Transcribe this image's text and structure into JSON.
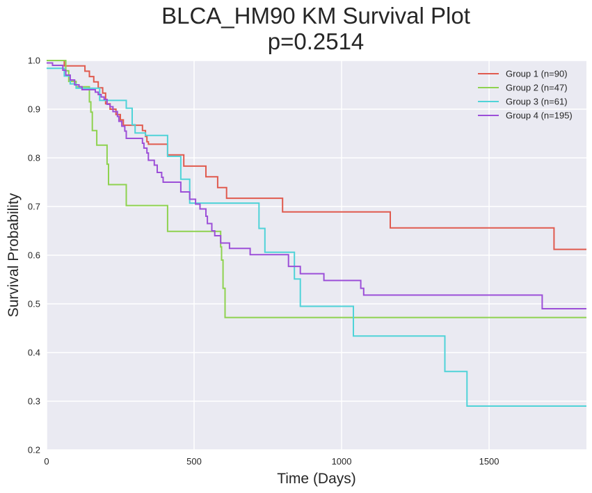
{
  "colors": {
    "plot_bg": "#eaeaf2",
    "grid": "#ffffff",
    "text": "#262626"
  },
  "chart_data": {
    "type": "line",
    "subtype": "kaplan-meier-step",
    "title_line1": "BLCA_HM90 KM Survival Plot",
    "title_line2": "p=0.2514",
    "xlabel": "Time (Days)",
    "ylabel": "Survival Probability",
    "xlim": [
      0,
      1830
    ],
    "ylim": [
      0.2,
      1.0
    ],
    "xticks": [
      0,
      500,
      1000,
      1500
    ],
    "yticks": [
      0.2,
      0.3,
      0.4,
      0.5,
      0.6,
      0.7,
      0.8,
      0.9,
      1.0
    ],
    "grid": true,
    "legend_position": "top-right",
    "series": [
      {
        "name": "Group 1 (n=90)",
        "color": "#e05a4e",
        "points": [
          [
            0,
            1.0
          ],
          [
            60,
            0.989
          ],
          [
            130,
            0.978
          ],
          [
            145,
            0.967
          ],
          [
            160,
            0.956
          ],
          [
            175,
            0.944
          ],
          [
            190,
            0.933
          ],
          [
            200,
            0.911
          ],
          [
            215,
            0.9
          ],
          [
            235,
            0.889
          ],
          [
            250,
            0.878
          ],
          [
            260,
            0.867
          ],
          [
            325,
            0.856
          ],
          [
            335,
            0.844
          ],
          [
            340,
            0.833
          ],
          [
            345,
            0.828
          ],
          [
            410,
            0.806
          ],
          [
            465,
            0.783
          ],
          [
            540,
            0.761
          ],
          [
            580,
            0.739
          ],
          [
            610,
            0.717
          ],
          [
            800,
            0.689
          ],
          [
            1165,
            0.656
          ],
          [
            1720,
            0.612
          ],
          [
            1830,
            0.612
          ]
        ]
      },
      {
        "name": "Group 2 (n=47)",
        "color": "#8ed24f",
        "points": [
          [
            0,
            1.0
          ],
          [
            65,
            0.979
          ],
          [
            75,
            0.957
          ],
          [
            100,
            0.946
          ],
          [
            145,
            0.915
          ],
          [
            150,
            0.894
          ],
          [
            155,
            0.856
          ],
          [
            170,
            0.826
          ],
          [
            205,
            0.787
          ],
          [
            210,
            0.745
          ],
          [
            270,
            0.702
          ],
          [
            410,
            0.649
          ],
          [
            590,
            0.617
          ],
          [
            593,
            0.59
          ],
          [
            598,
            0.532
          ],
          [
            605,
            0.472
          ],
          [
            1830,
            0.472
          ]
        ]
      },
      {
        "name": "Group 3 (n=61)",
        "color": "#4fd3d8",
        "points": [
          [
            0,
            0.984
          ],
          [
            60,
            0.968
          ],
          [
            80,
            0.952
          ],
          [
            100,
            0.943
          ],
          [
            180,
            0.918
          ],
          [
            270,
            0.902
          ],
          [
            290,
            0.868
          ],
          [
            300,
            0.851
          ],
          [
            335,
            0.846
          ],
          [
            410,
            0.803
          ],
          [
            455,
            0.756
          ],
          [
            485,
            0.707
          ],
          [
            720,
            0.655
          ],
          [
            740,
            0.606
          ],
          [
            840,
            0.551
          ],
          [
            860,
            0.495
          ],
          [
            1040,
            0.434
          ],
          [
            1350,
            0.361
          ],
          [
            1425,
            0.29
          ],
          [
            1830,
            0.29
          ]
        ]
      },
      {
        "name": "Group 4 (n=195)",
        "color": "#9c4fd8",
        "points": [
          [
            0,
            0.995
          ],
          [
            20,
            0.99
          ],
          [
            55,
            0.98
          ],
          [
            65,
            0.97
          ],
          [
            80,
            0.96
          ],
          [
            95,
            0.95
          ],
          [
            110,
            0.946
          ],
          [
            120,
            0.94
          ],
          [
            165,
            0.935
          ],
          [
            175,
            0.93
          ],
          [
            185,
            0.925
          ],
          [
            195,
            0.92
          ],
          [
            205,
            0.91
          ],
          [
            215,
            0.905
          ],
          [
            225,
            0.895
          ],
          [
            240,
            0.885
          ],
          [
            245,
            0.875
          ],
          [
            255,
            0.865
          ],
          [
            265,
            0.855
          ],
          [
            270,
            0.84
          ],
          [
            325,
            0.83
          ],
          [
            330,
            0.82
          ],
          [
            340,
            0.81
          ],
          [
            345,
            0.795
          ],
          [
            365,
            0.785
          ],
          [
            375,
            0.77
          ],
          [
            390,
            0.76
          ],
          [
            395,
            0.75
          ],
          [
            455,
            0.73
          ],
          [
            485,
            0.715
          ],
          [
            505,
            0.705
          ],
          [
            520,
            0.695
          ],
          [
            540,
            0.68
          ],
          [
            545,
            0.665
          ],
          [
            560,
            0.65
          ],
          [
            570,
            0.64
          ],
          [
            590,
            0.625
          ],
          [
            620,
            0.614
          ],
          [
            690,
            0.601
          ],
          [
            820,
            0.577
          ],
          [
            860,
            0.562
          ],
          [
            940,
            0.548
          ],
          [
            1065,
            0.532
          ],
          [
            1075,
            0.518
          ],
          [
            1680,
            0.49
          ],
          [
            1830,
            0.49
          ]
        ]
      }
    ]
  }
}
